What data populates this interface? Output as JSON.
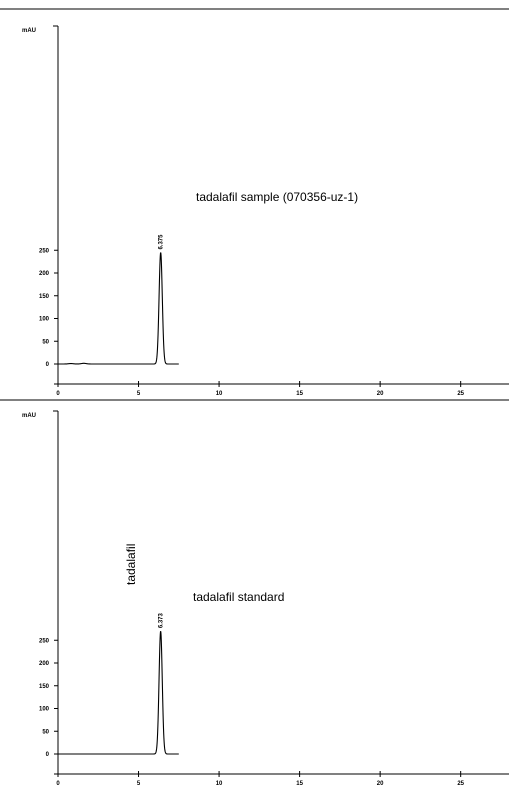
{
  "chart_data": [
    {
      "type": "line",
      "ylabel": "mAU",
      "xlim": [
        0,
        28
      ],
      "ylim": [
        -25,
        300
      ],
      "yticks": [
        0,
        50,
        100,
        150,
        200,
        250
      ],
      "xticks": [
        0,
        5,
        10,
        15,
        20,
        25
      ],
      "xtick_labels": [
        "0",
        "5",
        "10",
        "15",
        "20",
        "25"
      ],
      "trace_color": "#000000",
      "annotations": [
        {
          "text": "tadalafil sample (070356-uz-1)",
          "orientation": "horizontal"
        }
      ],
      "peaks": [
        {
          "label": "6.375",
          "rt": 6.375,
          "height": 245,
          "width": 0.1
        }
      ],
      "baseline": {
        "x_start": 0.0,
        "x_end": 7.5,
        "level": 0
      },
      "minor_bumps": [
        {
          "rt": 0.8,
          "height": 1.0
        },
        {
          "rt": 1.6,
          "height": 1.5
        }
      ]
    },
    {
      "type": "line",
      "ylabel": "mAU",
      "xlim": [
        0,
        28
      ],
      "ylim": [
        -25,
        300
      ],
      "yticks": [
        0,
        50,
        100,
        150,
        200,
        250
      ],
      "xticks": [
        0,
        5,
        10,
        15,
        20,
        25
      ],
      "xtick_labels": [
        "0",
        "5",
        "10",
        "15",
        "20",
        "25"
      ],
      "trace_color": "#000000",
      "annotations": [
        {
          "text": "tadalafil",
          "orientation": "vertical"
        },
        {
          "text": "tadalafil standard",
          "orientation": "horizontal"
        }
      ],
      "peaks": [
        {
          "label": "6.373",
          "rt": 6.373,
          "height": 270,
          "width": 0.1
        }
      ],
      "baseline": {
        "x_start": 0.0,
        "x_end": 7.5,
        "level": 0
      },
      "minor_bumps": []
    }
  ]
}
